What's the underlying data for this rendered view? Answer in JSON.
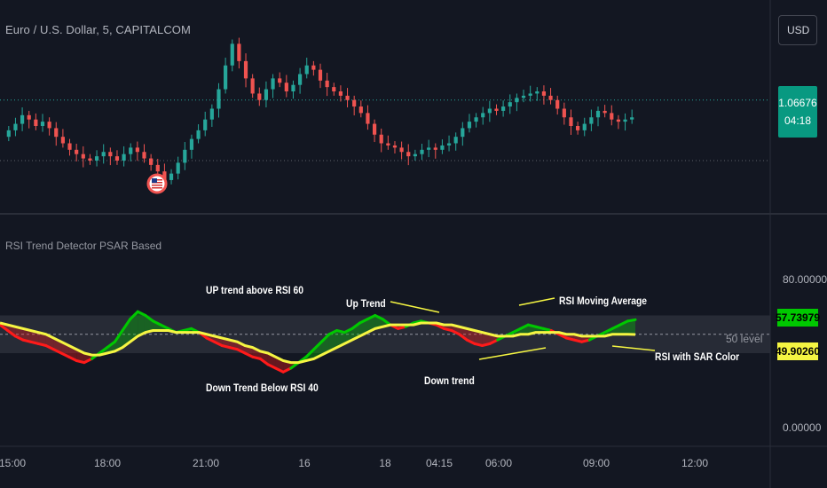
{
  "header": {
    "symbol_title": "Euro / U.S. Dollar, 5, CAPITALCOM",
    "currency": "USD",
    "price": "1.06676",
    "countdown": "04:18"
  },
  "indicator": {
    "title": "RSI Trend Detector PSAR Based",
    "rsi_value": "57.73979",
    "ma_value": "49.90260",
    "level_80": "80.00000",
    "level_0": "0.00000",
    "level_50_label": "50 level"
  },
  "annotations": {
    "up_trend_above": "UP trend above RSI 60",
    "up_trend": "Up Trend",
    "rsi_ma": "RSI Moving Average",
    "down_trend_below": "Down Trend Below RSI 40",
    "down_trend": "Down trend",
    "rsi_sar": "RSI with SAR Color"
  },
  "time_axis": [
    "15:00",
    "18:00",
    "21:00",
    "16",
    "18",
    "04:15",
    "06:00",
    "09:00",
    "12:00"
  ],
  "colors": {
    "background": "#131722",
    "candle_up": "#26a69a",
    "candle_down": "#ef5350",
    "rsi_up": "#00c800",
    "rsi_down": "#ff1a1a",
    "rsi_ma": "#f5f542",
    "price_badge": "#089981",
    "rsi_badge": "#00c800",
    "ma_badge": "#f5f542"
  },
  "chart_data": [
    {
      "type": "candlestick",
      "title": "Euro / U.S. Dollar, 5, CAPITALCOM",
      "close": [
        1.0662,
        1.0665,
        1.0669,
        1.0667,
        1.0664,
        1.0666,
        1.0663,
        1.0659,
        1.0656,
        1.0653,
        1.0651,
        1.0649,
        1.0648,
        1.065,
        1.0652,
        1.065,
        1.0648,
        1.0651,
        1.0654,
        1.0652,
        1.0649,
        1.0646,
        1.0643,
        1.0639,
        1.0642,
        1.0647,
        1.0653,
        1.0658,
        1.0662,
        1.0667,
        1.0672,
        1.0681,
        1.0692,
        1.0702,
        1.0694,
        1.0686,
        1.0679,
        1.0676,
        1.0681,
        1.0686,
        1.0684,
        1.068,
        1.0683,
        1.0688,
        1.0692,
        1.069,
        1.0685,
        1.0682,
        1.068,
        1.0678,
        1.0676,
        1.0673,
        1.067,
        1.0665,
        1.066,
        1.0656,
        1.0655,
        1.0654,
        1.0652,
        1.065,
        1.0651,
        1.0653,
        1.0654,
        1.0653,
        1.0655,
        1.0656,
        1.0659,
        1.0663,
        1.0666,
        1.0668,
        1.067,
        1.0672,
        1.0671,
        1.0673,
        1.0675,
        1.0677,
        1.0678,
        1.0679,
        1.068,
        1.0678,
        1.0676,
        1.0672,
        1.0668,
        1.0664,
        1.0662,
        1.0665,
        1.0668,
        1.0671,
        1.067,
        1.0667,
        1.0666,
        1.0667,
        1.0668
      ],
      "price_label": "1.06676",
      "currency": "USD"
    },
    {
      "type": "line",
      "title": "RSI Trend Detector PSAR Based",
      "ylim": [
        0,
        80
      ],
      "levels": [
        40,
        50,
        60
      ],
      "series": [
        {
          "values": [
            55,
            52,
            49,
            47,
            46,
            45,
            44,
            42,
            40,
            38,
            36,
            35,
            37,
            40,
            43,
            46,
            52,
            58,
            62,
            60,
            57,
            55,
            53,
            51,
            52,
            53,
            51,
            48,
            46,
            44,
            43,
            42,
            40,
            38,
            37,
            34,
            32,
            30,
            32,
            35,
            38,
            42,
            46,
            50,
            52,
            51,
            53,
            56,
            58,
            60,
            58,
            55,
            53,
            54,
            56,
            57,
            56,
            55,
            53,
            52,
            50,
            47,
            45,
            44,
            45,
            47,
            49,
            51,
            53,
            55,
            54,
            53,
            52,
            50,
            48,
            47,
            46,
            47,
            49,
            51,
            53,
            55,
            57,
            57.73979
          ]
        },
        {
          "values": [
            56,
            55,
            54,
            53,
            52,
            51,
            50,
            48,
            46,
            44,
            42,
            40,
            39,
            39,
            40,
            41,
            43,
            46,
            49,
            51,
            52,
            52,
            52,
            51,
            51,
            51,
            51,
            50,
            49,
            48,
            47,
            46,
            44,
            43,
            41,
            40,
            38,
            36,
            35,
            35,
            36,
            37,
            39,
            41,
            43,
            45,
            47,
            49,
            51,
            53,
            54,
            55,
            55,
            55,
            55,
            56,
            56,
            56,
            55,
            55,
            54,
            53,
            52,
            51,
            50,
            49,
            49,
            49,
            50,
            50,
            51,
            51,
            51,
            51,
            50,
            50,
            49,
            49,
            49,
            49,
            50,
            50,
            50,
            49.9026
          ]
        }
      ]
    }
  ]
}
